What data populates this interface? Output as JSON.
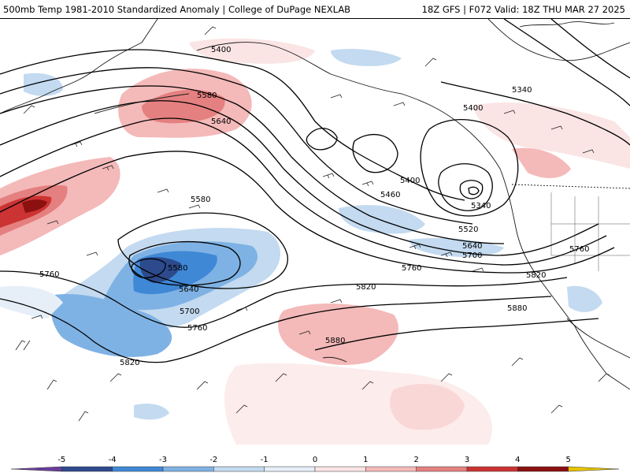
{
  "header": {
    "title_left": "500mb Temp 1981-2010 Standardized Anomaly | College of DuPage NEXLAB",
    "title_right": "18Z GFS | F072 Valid: 18Z THU MAR 27 2025"
  },
  "colors": {
    "coast": "#1a1a1a",
    "contour": "#000000",
    "barb": "#222222"
  },
  "contour_labels": [
    {
      "text": "5400",
      "id": "c5400a"
    },
    {
      "text": "5580",
      "id": "c5580a"
    },
    {
      "text": "5640",
      "id": "c5640a"
    },
    {
      "text": "5400",
      "id": "c5400b"
    },
    {
      "text": "5340",
      "id": "c5340a"
    },
    {
      "text": "5400",
      "id": "c5400c"
    },
    {
      "text": "5460",
      "id": "c5460a"
    },
    {
      "text": "5340",
      "id": "c5340b"
    },
    {
      "text": "5520",
      "id": "c5520a"
    },
    {
      "text": "5640",
      "id": "c5640b"
    },
    {
      "text": "5700",
      "id": "c5700a"
    },
    {
      "text": "5760",
      "id": "c5760a"
    },
    {
      "text": "5760",
      "id": "c5760b"
    },
    {
      "text": "5820",
      "id": "c5820a"
    },
    {
      "text": "5580",
      "id": "c5580b"
    },
    {
      "text": "5580",
      "id": "c5580c"
    },
    {
      "text": "5640",
      "id": "c5640c"
    },
    {
      "text": "5760",
      "id": "c5760c"
    },
    {
      "text": "5820",
      "id": "c5820b"
    },
    {
      "text": "5700",
      "id": "c5700b"
    },
    {
      "text": "5760",
      "id": "c5760d"
    },
    {
      "text": "5880",
      "id": "c5880a"
    },
    {
      "text": "5880",
      "id": "c5880b"
    },
    {
      "text": "5820",
      "id": "c5820c"
    }
  ],
  "legend": {
    "ticks": [
      "-5",
      "-4",
      "-3",
      "-2",
      "-1",
      "0",
      "1",
      "2",
      "3",
      "4",
      "5"
    ],
    "bins": [
      {
        "color": "#6a3d9a"
      },
      {
        "color": "#2c4a8c"
      },
      {
        "color": "#3f88d6"
      },
      {
        "color": "#7fb2e4"
      },
      {
        "color": "#c3daf0"
      },
      {
        "color": "#e6eff8"
      },
      {
        "color": "#fbe4e4"
      },
      {
        "color": "#f4b9b9"
      },
      {
        "color": "#e58080"
      },
      {
        "color": "#cc3333"
      },
      {
        "color": "#8b1010"
      },
      {
        "color": "#e8c400"
      }
    ]
  }
}
